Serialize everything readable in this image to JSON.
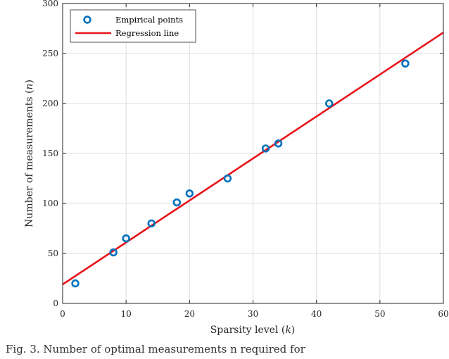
{
  "chart_data": {
    "type": "scatter",
    "xlabel": "Sparsity level (k)",
    "ylabel": "Number of measurements (n)",
    "xlim": [
      0,
      60
    ],
    "ylim": [
      0,
      300
    ],
    "xticks": [
      0,
      10,
      20,
      30,
      40,
      50,
      60
    ],
    "yticks": [
      0,
      50,
      100,
      150,
      200,
      250,
      300
    ],
    "grid": true,
    "legend_position": "top-left",
    "series": [
      {
        "name": "Empirical points",
        "kind": "scatter",
        "marker": "circle",
        "color": "#0072BD",
        "x": [
          2,
          8,
          10,
          14,
          18,
          20,
          26,
          32,
          34,
          42,
          54
        ],
        "y": [
          20,
          51,
          65,
          80,
          101,
          110,
          125,
          155,
          160,
          200,
          240
        ]
      },
      {
        "name": "Regression line",
        "kind": "line",
        "color": "#E8141B",
        "x": [
          0,
          60
        ],
        "y": [
          19,
          271
        ]
      }
    ]
  },
  "caption": "Fig. 3. Number of optimal measurements n required for"
}
